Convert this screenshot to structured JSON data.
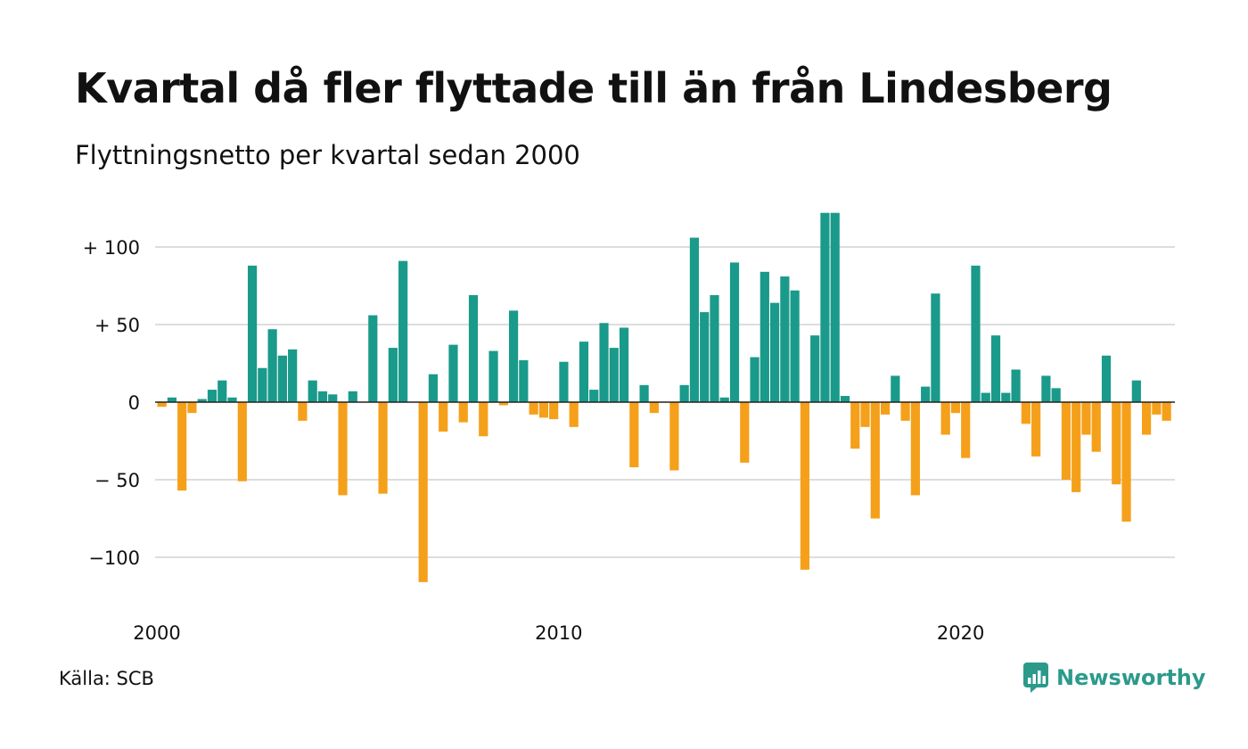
{
  "title": "Kvartal då fler flyttade till än från Lindesberg",
  "subtitle": "Flyttningsnetto per kvartal sedan 2000",
  "source": "Källa: SCB",
  "brand": "Newsworthy",
  "colors": {
    "positive": "#1a9a8a",
    "negative": "#f5a01a",
    "grid": "#dddddd",
    "zero_line": "#222222",
    "brand": "#2b9a8b"
  },
  "chart_data": {
    "type": "bar",
    "start_year": 2000,
    "periods_per_year": 4,
    "ylim": [
      -120,
      122
    ],
    "y_ticks": [
      {
        "value": 100,
        "label": "+ 100"
      },
      {
        "value": 50,
        "label": "+  50"
      },
      {
        "value": 0,
        "label": "0"
      },
      {
        "value": -50,
        "label": "− 50"
      },
      {
        "value": -100,
        "label": "−100"
      }
    ],
    "x_ticks": [
      {
        "year": 2000,
        "label": "2000"
      },
      {
        "year": 2010,
        "label": "2010"
      },
      {
        "year": 2020,
        "label": "2020"
      }
    ],
    "grid": true,
    "categories": [
      "2000K1",
      "2000K2",
      "2000K3",
      "2000K4",
      "2001K1",
      "2001K2",
      "2001K3",
      "2001K4",
      "2002K1",
      "2002K2",
      "2002K3",
      "2002K4",
      "2003K1",
      "2003K2",
      "2003K3",
      "2003K4",
      "2004K1",
      "2004K2",
      "2004K3",
      "2004K4",
      "2005K1",
      "2005K2",
      "2005K3",
      "2005K4",
      "2006K1",
      "2006K2",
      "2006K3",
      "2006K4",
      "2007K1",
      "2007K2",
      "2007K3",
      "2007K4",
      "2008K1",
      "2008K2",
      "2008K3",
      "2008K4",
      "2009K1",
      "2009K2",
      "2009K3",
      "2009K4",
      "2010K1",
      "2010K2",
      "2010K3",
      "2010K4",
      "2011K1",
      "2011K2",
      "2011K3",
      "2011K4",
      "2012K1",
      "2012K2",
      "2012K3",
      "2012K4",
      "2013K1",
      "2013K2",
      "2013K3",
      "2013K4",
      "2014K1",
      "2014K2",
      "2014K3",
      "2014K4",
      "2015K1",
      "2015K2",
      "2015K3",
      "2015K4",
      "2016K1",
      "2016K2",
      "2016K3",
      "2016K4",
      "2017K1",
      "2017K2",
      "2017K3",
      "2017K4",
      "2018K1",
      "2018K2",
      "2018K3",
      "2018K4",
      "2019K1",
      "2019K2",
      "2019K3",
      "2019K4",
      "2020K1",
      "2020K2",
      "2020K3",
      "2020K4",
      "2021K1",
      "2021K2",
      "2021K3",
      "2021K4",
      "2022K1",
      "2022K2",
      "2022K3",
      "2022K4",
      "2023K1",
      "2023K2",
      "2023K3",
      "2023K4",
      "2024K1",
      "2024K2",
      "2024K3",
      "2024K4",
      "2025K1"
    ],
    "values": [
      -3,
      3,
      -57,
      -7,
      2,
      8,
      14,
      3,
      -51,
      88,
      22,
      47,
      30,
      34,
      -12,
      14,
      7,
      5,
      -60,
      7,
      0,
      56,
      -59,
      35,
      91,
      0,
      -116,
      18,
      -19,
      37,
      -13,
      69,
      -22,
      33,
      -2,
      59,
      27,
      -8,
      -10,
      -11,
      26,
      -16,
      39,
      8,
      51,
      35,
      48,
      -42,
      11,
      -7,
      0,
      -44,
      11,
      106,
      58,
      69,
      3,
      90,
      -39,
      29,
      84,
      64,
      81,
      72,
      -108,
      43,
      122,
      122,
      4,
      -30,
      -16,
      -75,
      -8,
      17,
      -12,
      -60,
      10,
      70,
      -21,
      -7,
      -36,
      88,
      6,
      43,
      6,
      21,
      -14,
      -35,
      17,
      9,
      -50,
      -58,
      -21,
      -32,
      30,
      -53,
      -77,
      14,
      -21,
      -8,
      -12
    ]
  }
}
